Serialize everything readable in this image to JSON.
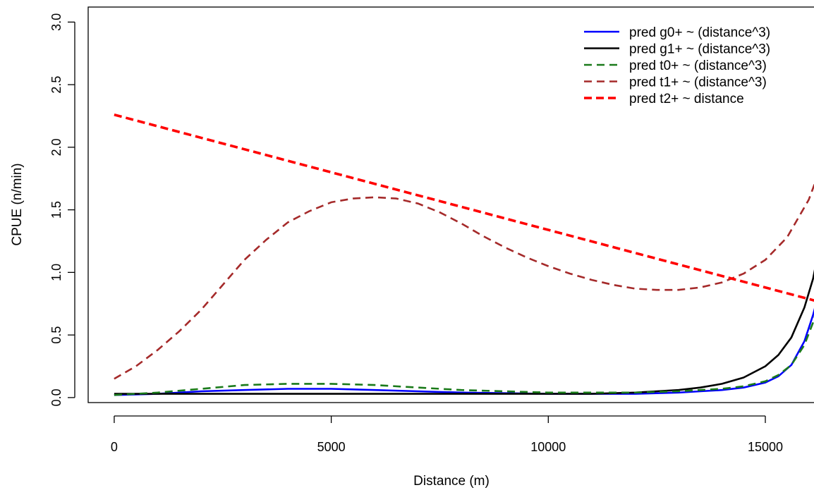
{
  "chart_data": {
    "type": "line",
    "title": "",
    "xlabel": "Distance (m)",
    "ylabel": "CPUE (n/min)",
    "xlim": [
      -600,
      16300
    ],
    "ylim": [
      -0.04,
      3.12
    ],
    "x_ticks": [
      0,
      5000,
      10000,
      15000
    ],
    "x_tick_labels": [
      "0",
      "5000",
      "10000",
      "15000"
    ],
    "y_ticks": [
      0.0,
      0.5,
      1.0,
      1.5,
      2.0,
      2.5,
      3.0
    ],
    "y_tick_labels": [
      "0.0",
      "0.5",
      "1.0",
      "1.5",
      "2.0",
      "2.5",
      "3.0"
    ],
    "grid": false,
    "legend_position": "top-right",
    "series": [
      {
        "name": "pred g0+ ~ (distance^3)",
        "color": "#0000ff",
        "dash": "solid",
        "x": [
          0,
          1000,
          2000,
          3000,
          4000,
          5000,
          6000,
          7000,
          8000,
          9000,
          10000,
          11000,
          12000,
          13000,
          13500,
          14000,
          14500,
          15000,
          15300,
          15600,
          15900,
          16100,
          16300
        ],
        "y": [
          0.02,
          0.03,
          0.05,
          0.06,
          0.07,
          0.07,
          0.06,
          0.05,
          0.04,
          0.035,
          0.03,
          0.03,
          0.03,
          0.04,
          0.05,
          0.06,
          0.08,
          0.12,
          0.17,
          0.26,
          0.45,
          0.66,
          0.92
        ]
      },
      {
        "name": "pred g1+ ~ (distance^3)",
        "color": "#000000",
        "dash": "solid",
        "x": [
          0,
          1000,
          2000,
          3000,
          4000,
          5000,
          6000,
          7000,
          8000,
          9000,
          10000,
          11000,
          12000,
          13000,
          13500,
          14000,
          14500,
          15000,
          15300,
          15600,
          15900,
          16100,
          16300
        ],
        "y": [
          0.03,
          0.03,
          0.03,
          0.03,
          0.03,
          0.03,
          0.03,
          0.03,
          0.03,
          0.03,
          0.03,
          0.03,
          0.04,
          0.06,
          0.08,
          0.11,
          0.16,
          0.25,
          0.34,
          0.48,
          0.72,
          0.95,
          1.3
        ]
      },
      {
        "name": "pred t0+ ~ (distance^3)",
        "color": "#1a7a1a",
        "dash": "dashed",
        "x": [
          0,
          1000,
          2000,
          3000,
          4000,
          5000,
          6000,
          7000,
          8000,
          9000,
          10000,
          11000,
          12000,
          13000,
          13500,
          14000,
          14500,
          15000,
          15300,
          15600,
          15900,
          16100,
          16300
        ],
        "y": [
          0.02,
          0.04,
          0.07,
          0.1,
          0.11,
          0.11,
          0.1,
          0.08,
          0.06,
          0.05,
          0.04,
          0.04,
          0.04,
          0.05,
          0.06,
          0.07,
          0.09,
          0.13,
          0.18,
          0.26,
          0.42,
          0.6,
          0.85
        ]
      },
      {
        "name": "pred t1+ ~ (distance^3)",
        "color": "#a52a2a",
        "dash": "dashed",
        "x": [
          0,
          500,
          1000,
          1500,
          2000,
          2500,
          3000,
          3500,
          4000,
          4500,
          5000,
          5500,
          6000,
          6500,
          7000,
          7500,
          8000,
          8500,
          9000,
          9500,
          10000,
          10500,
          11000,
          11500,
          12000,
          12500,
          13000,
          13500,
          14000,
          14500,
          15000,
          15500,
          16000,
          16300
        ],
        "y": [
          0.15,
          0.25,
          0.38,
          0.53,
          0.7,
          0.9,
          1.1,
          1.26,
          1.4,
          1.49,
          1.56,
          1.59,
          1.6,
          1.59,
          1.55,
          1.48,
          1.39,
          1.29,
          1.2,
          1.12,
          1.05,
          0.99,
          0.94,
          0.9,
          0.87,
          0.86,
          0.86,
          0.88,
          0.92,
          0.99,
          1.1,
          1.28,
          1.58,
          1.86
        ]
      },
      {
        "name": "pred t2+ ~ distance",
        "color": "#ff0000",
        "dash": "dashed-thick",
        "x": [
          0,
          16300
        ],
        "y": [
          2.26,
          0.76
        ]
      }
    ]
  }
}
